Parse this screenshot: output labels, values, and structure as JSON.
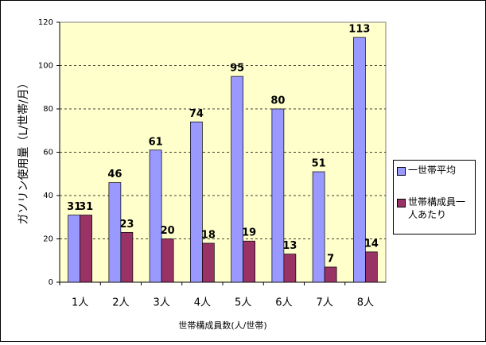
{
  "chart_data": {
    "type": "bar",
    "y_label": "ガソリン使用量（L/世帯/月）",
    "x_label": "世帯構成員数(人/世帯)",
    "categories": [
      "1人",
      "2人",
      "3人",
      "4人",
      "5人",
      "6人",
      "7人",
      "8人"
    ],
    "series": [
      {
        "name": "一世帯平均",
        "color": "#9999ff",
        "values": [
          31,
          46,
          61,
          74,
          95,
          80,
          51,
          113
        ]
      },
      {
        "name": "世帯構成員一人あたり",
        "color": "#993366",
        "values": [
          31,
          23,
          20,
          18,
          19,
          13,
          7,
          14
        ]
      }
    ],
    "ylim": [
      0,
      120
    ],
    "yticks": [
      0,
      20,
      40,
      60,
      80,
      100,
      120
    ],
    "grid": true,
    "legend": "right"
  }
}
